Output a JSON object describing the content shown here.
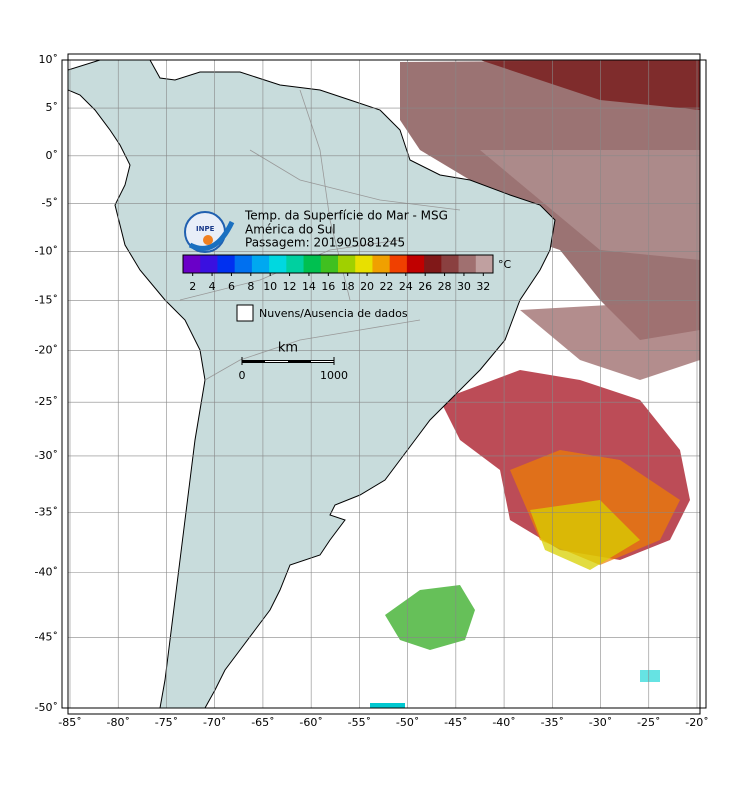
{
  "map": {
    "xlim": [
      -85,
      -20
    ],
    "ylim": [
      -50,
      10
    ],
    "projection": "mercator",
    "grid": true,
    "xticks": [
      {
        "value": -85,
        "label": "-85˚"
      },
      {
        "value": -80,
        "label": "-80˚"
      },
      {
        "value": -75,
        "label": "-75˚"
      },
      {
        "value": -70,
        "label": "-70˚"
      },
      {
        "value": -65,
        "label": "-65˚"
      },
      {
        "value": -60,
        "label": "-60˚"
      },
      {
        "value": -55,
        "label": "-55˚"
      },
      {
        "value": -50,
        "label": "-50˚"
      },
      {
        "value": -45,
        "label": "-45˚"
      },
      {
        "value": -40,
        "label": "-40˚"
      },
      {
        "value": -35,
        "label": "-35˚"
      },
      {
        "value": -30,
        "label": "-30˚"
      },
      {
        "value": -25,
        "label": "-25˚"
      },
      {
        "value": -20,
        "label": "-20˚"
      }
    ],
    "yticks": [
      {
        "value": 10,
        "label": "10˚"
      },
      {
        "value": 5,
        "label": "5˚"
      },
      {
        "value": 0,
        "label": "0˚"
      },
      {
        "value": -5,
        "label": "-5˚"
      },
      {
        "value": -10,
        "label": "-10˚"
      },
      {
        "value": -15,
        "label": "-15˚"
      },
      {
        "value": -20,
        "label": "-20˚"
      },
      {
        "value": -25,
        "label": "-25˚"
      },
      {
        "value": -30,
        "label": "-30˚"
      },
      {
        "value": -35,
        "label": "-35˚"
      },
      {
        "value": -40,
        "label": "-40˚"
      },
      {
        "value": -45,
        "label": "-45˚"
      },
      {
        "value": -50,
        "label": "-50˚"
      }
    ]
  },
  "header": {
    "logo": "INPE",
    "title": "Temp. da Superfície do Mar - MSG",
    "region": "América do Sul",
    "pass": "Passagem: 201905081245"
  },
  "colorbar": {
    "unit": "°C",
    "lim": [
      1,
      33
    ],
    "ticks": [
      2,
      4,
      6,
      8,
      10,
      12,
      14,
      16,
      18,
      20,
      22,
      24,
      26,
      28,
      30,
      32
    ],
    "colors": [
      "#6a00c8",
      "#3a10e0",
      "#0030f0",
      "#0070f0",
      "#00a8f0",
      "#00d8e0",
      "#00d0a0",
      "#00c050",
      "#40c020",
      "#a0d000",
      "#e8e000",
      "#f0a000",
      "#f04000",
      "#c00000",
      "#801818",
      "#8a4040",
      "#a07070",
      "#c0a0a0"
    ]
  },
  "legend": {
    "label": "Nuvens/Ausencia de dados"
  },
  "scale": {
    "unit": "km",
    "start": "0",
    "end": "1000"
  }
}
